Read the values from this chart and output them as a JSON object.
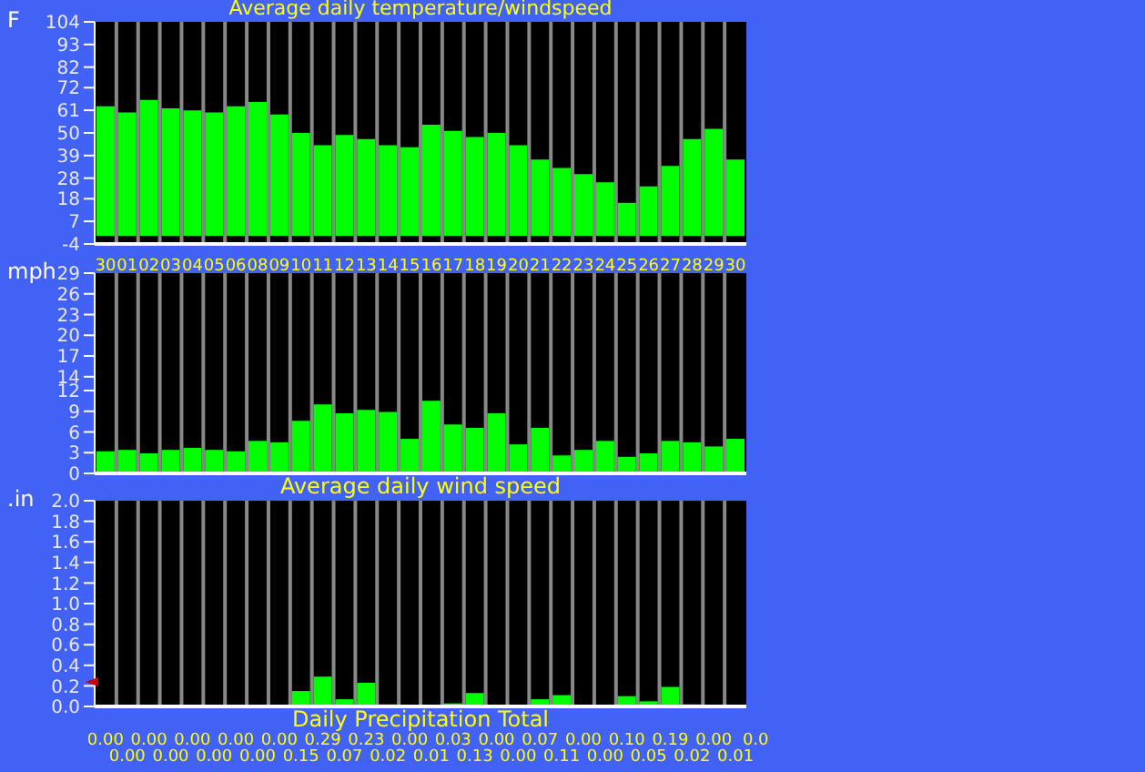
{
  "chart_data": [
    {
      "type": "bar",
      "title": "Average daily temperature/windspeed",
      "ylabel": "F",
      "categories": [
        "30",
        "01",
        "02",
        "03",
        "04",
        "05",
        "06",
        "08",
        "09",
        "10",
        "11",
        "12",
        "13",
        "14",
        "15",
        "16",
        "17",
        "18",
        "19",
        "20",
        "21",
        "22",
        "23",
        "24",
        "25",
        "26",
        "27",
        "28",
        "29",
        "30"
      ],
      "values": [
        63,
        60,
        66,
        62,
        61,
        60,
        63,
        65,
        59,
        50,
        44,
        49,
        47,
        44,
        43,
        54,
        51,
        48,
        50,
        44,
        37,
        33,
        30,
        26,
        16,
        24,
        34,
        47,
        52,
        37
      ],
      "color": "#00ff00",
      "ylim": [
        -4,
        104
      ],
      "yticks": [
        -4,
        7,
        18,
        28,
        39,
        50,
        61,
        72,
        82,
        93,
        104
      ],
      "grid": "x"
    },
    {
      "type": "bar",
      "ylabel": "mph",
      "xlabel": "Average daily wind speed",
      "categories": [
        null,
        null,
        null,
        null,
        null,
        null,
        null,
        null,
        null,
        null,
        null,
        null,
        null,
        null,
        null,
        null,
        null,
        null,
        null,
        null,
        null,
        null,
        null,
        null,
        null,
        null,
        null,
        null,
        null,
        null
      ],
      "values": [
        3.2,
        3.4,
        2.9,
        3.4,
        3.7,
        3.4,
        3.2,
        4.7,
        4.5,
        7.6,
        10.0,
        8.7,
        9.2,
        8.9,
        5.0,
        10.5,
        7.1,
        6.6,
        8.7,
        4.2,
        6.6,
        2.6,
        3.4,
        4.7,
        2.4,
        2.9,
        4.7,
        4.5,
        3.9,
        5.0
      ],
      "color": "#00ff00",
      "ylim": [
        0,
        29
      ],
      "yticks": [
        0,
        3,
        6,
        9,
        12,
        14,
        17,
        20,
        23,
        26,
        29
      ],
      "grid": "x",
      "tick_labels": "y"
    },
    {
      "type": "bar",
      "ylabel": ".in",
      "xlabel": "Daily Precipitation Total",
      "categories": [
        null,
        null,
        null,
        null,
        null,
        null,
        null,
        null,
        null,
        null,
        null,
        null,
        null,
        null,
        null,
        null,
        null,
        null,
        null,
        null,
        null,
        null,
        null,
        null,
        null,
        null,
        null,
        null,
        null,
        null
      ],
      "values": [
        0,
        0,
        0,
        0,
        0,
        0,
        0,
        0,
        0,
        0.15,
        0.29,
        0.07,
        0.23,
        0.02,
        0,
        0.01,
        0.03,
        0.13,
        0,
        0,
        0.07,
        0.11,
        0,
        0,
        0.1,
        0.05,
        0.19,
        0.02,
        0,
        0.01
      ],
      "value_labels": [
        "0.00",
        "0.00",
        "0.00",
        "0.00",
        "0.00",
        "0.00",
        "0.00",
        "0.00",
        "0.00",
        "0.15",
        "0.29",
        "0.07",
        "0.23",
        "0.02",
        "0.00",
        "0.01",
        "0.03",
        "0.13",
        "0.00",
        "0.00",
        "0.07",
        "0.11",
        "0.00",
        "0.00",
        "0.10",
        "0.05",
        "0.19",
        "0.02",
        "0.00",
        "0.01"
      ],
      "annotations": [
        "0.0"
      ],
      "color": "#00ff00",
      "ylim": [
        0,
        2
      ],
      "yticks": [
        {
          "value": 0,
          "label": "0.0"
        },
        {
          "value": 0.2,
          "label": "0.2"
        },
        {
          "value": 0.4,
          "label": "0.4"
        },
        {
          "value": 0.6,
          "label": "0.6"
        },
        {
          "value": 0.8,
          "label": "0.8"
        },
        {
          "value": 1,
          "label": "1.0"
        },
        {
          "value": 1.2,
          "label": "1.2"
        },
        {
          "value": 1.4,
          "label": "1.4"
        },
        {
          "value": 1.6,
          "label": "1.6"
        },
        {
          "value": 1.8,
          "label": "1.8"
        },
        {
          "value": 2,
          "label": "2.0"
        }
      ],
      "grid": "x",
      "tick_labels": "y"
    }
  ]
}
